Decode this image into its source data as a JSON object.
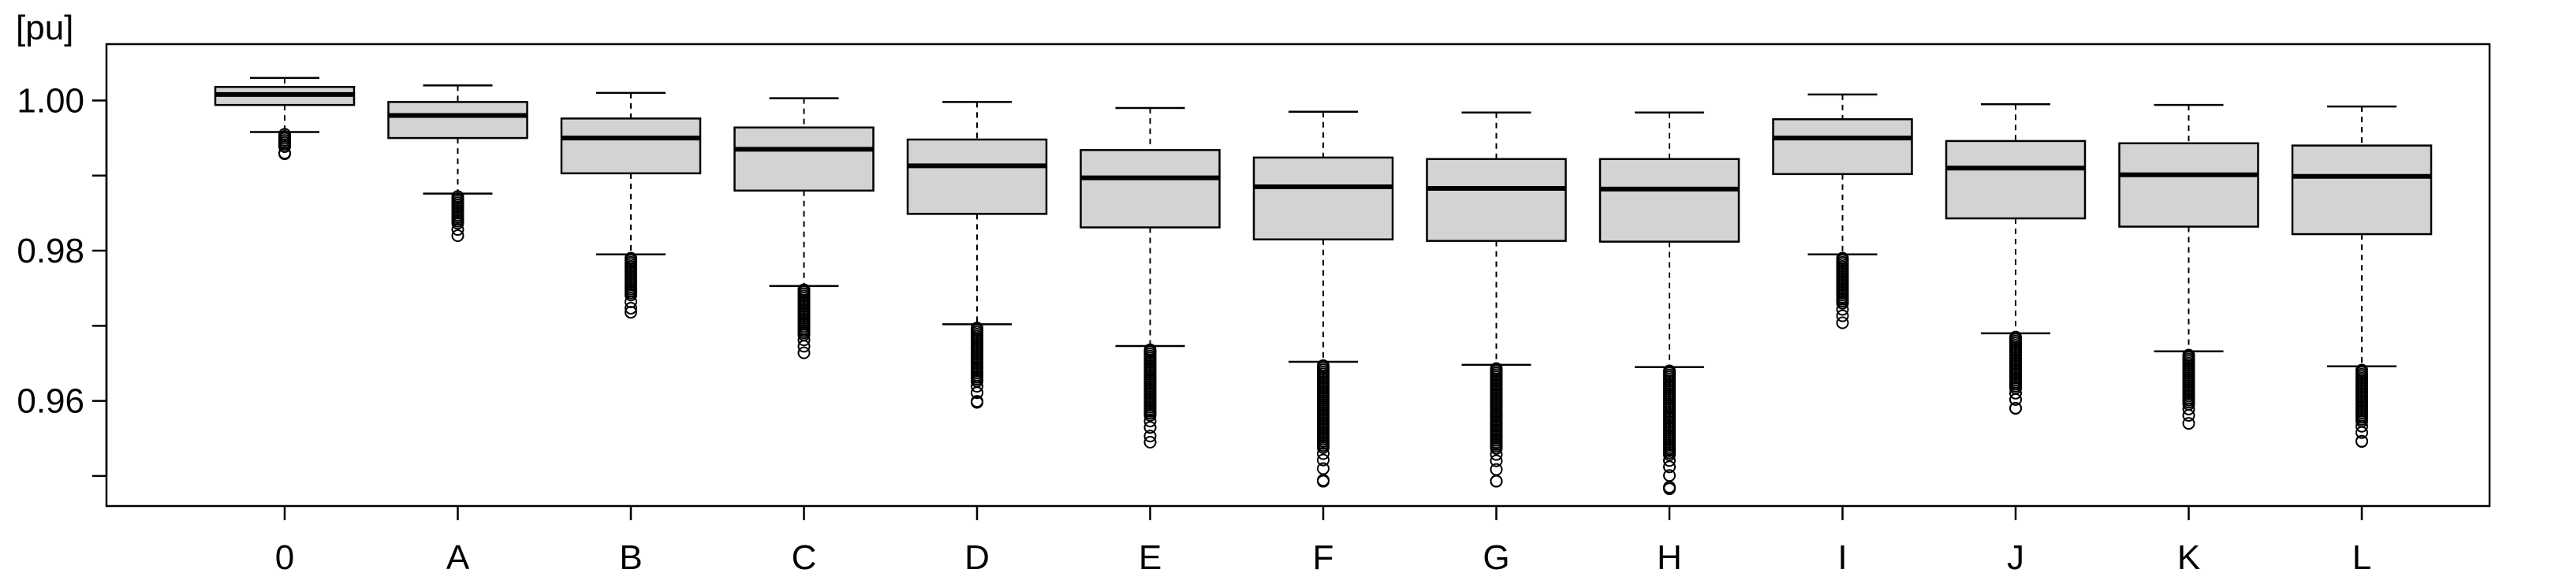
{
  "chart_data": {
    "type": "box",
    "ylabel": "[pu]",
    "ylim": [
      0.946,
      1.0075
    ],
    "y_ticks": [
      0.95,
      0.96,
      0.97,
      0.98,
      0.99,
      1.0
    ],
    "y_tick_labels": [
      "",
      "0.96",
      "",
      "0.98",
      "",
      "1.00"
    ],
    "categories": [
      "0",
      "A",
      "B",
      "C",
      "D",
      "E",
      "F",
      "G",
      "H",
      "I",
      "J",
      "K",
      "L"
    ],
    "grid": false,
    "box_color": "#d3d3d3",
    "boxes": [
      {
        "category": "0",
        "whisker_low": 0.9958,
        "q1": 0.9994,
        "median": 1.0008,
        "q3": 1.0018,
        "whisker_high": 1.003,
        "outliers_low": 0.9929,
        "outliers_high": 0.9955
      },
      {
        "category": "A",
        "whisker_low": 0.9876,
        "q1": 0.995,
        "median": 0.998,
        "q3": 0.9998,
        "whisker_high": 1.002,
        "outliers_low": 0.982,
        "outliers_high": 0.9872
      },
      {
        "category": "B",
        "whisker_low": 0.9795,
        "q1": 0.9903,
        "median": 0.995,
        "q3": 0.9976,
        "whisker_high": 1.001,
        "outliers_low": 0.9718,
        "outliers_high": 0.979
      },
      {
        "category": "C",
        "whisker_low": 0.9753,
        "q1": 0.988,
        "median": 0.9935,
        "q3": 0.9964,
        "whisker_high": 1.0003,
        "outliers_low": 0.9664,
        "outliers_high": 0.9748
      },
      {
        "category": "D",
        "whisker_low": 0.9702,
        "q1": 0.9849,
        "median": 0.9913,
        "q3": 0.9948,
        "whisker_high": 0.9998,
        "outliers_low": 0.9598,
        "outliers_high": 0.9697
      },
      {
        "category": "E",
        "whisker_low": 0.9673,
        "q1": 0.9831,
        "median": 0.9897,
        "q3": 0.9934,
        "whisker_high": 0.999,
        "outliers_low": 0.9545,
        "outliers_high": 0.9668
      },
      {
        "category": "F",
        "whisker_low": 0.9652,
        "q1": 0.9815,
        "median": 0.9885,
        "q3": 0.9924,
        "whisker_high": 0.9985,
        "outliers_low": 0.9493,
        "outliers_high": 0.9647
      },
      {
        "category": "G",
        "whisker_low": 0.9648,
        "q1": 0.9813,
        "median": 0.9883,
        "q3": 0.9922,
        "whisker_high": 0.9984,
        "outliers_low": 0.9493,
        "outliers_high": 0.9643
      },
      {
        "category": "H",
        "whisker_low": 0.9645,
        "q1": 0.9812,
        "median": 0.9882,
        "q3": 0.9922,
        "whisker_high": 0.9984,
        "outliers_low": 0.9483,
        "outliers_high": 0.964
      },
      {
        "category": "I",
        "whisker_low": 0.9795,
        "q1": 0.9902,
        "median": 0.995,
        "q3": 0.9975,
        "whisker_high": 1.0008,
        "outliers_low": 0.9704,
        "outliers_high": 0.979
      },
      {
        "category": "J",
        "whisker_low": 0.969,
        "q1": 0.9843,
        "median": 0.991,
        "q3": 0.9946,
        "whisker_high": 0.9995,
        "outliers_low": 0.959,
        "outliers_high": 0.9685
      },
      {
        "category": "K",
        "whisker_low": 0.9666,
        "q1": 0.9832,
        "median": 0.9901,
        "q3": 0.9943,
        "whisker_high": 0.9994,
        "outliers_low": 0.957,
        "outliers_high": 0.9661
      },
      {
        "category": "L",
        "whisker_low": 0.9646,
        "q1": 0.9822,
        "median": 0.9899,
        "q3": 0.994,
        "whisker_high": 0.9992,
        "outliers_low": 0.9546,
        "outliers_high": 0.9641
      }
    ]
  }
}
